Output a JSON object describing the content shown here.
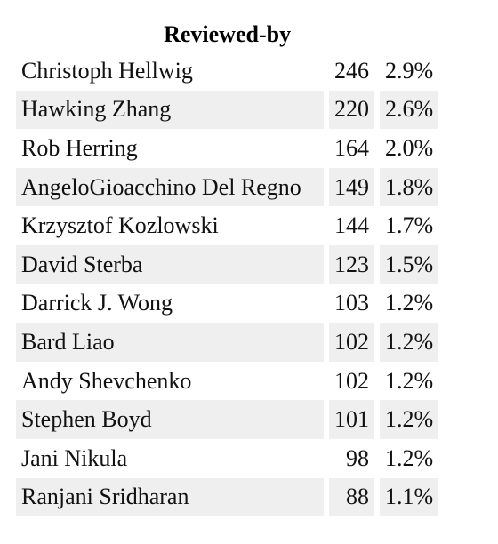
{
  "table": {
    "title": "Reviewed-by",
    "rows": [
      {
        "name": "Christoph Hellwig",
        "count": "246",
        "percent": "2.9%"
      },
      {
        "name": "Hawking Zhang",
        "count": "220",
        "percent": "2.6%"
      },
      {
        "name": "Rob Herring",
        "count": "164",
        "percent": "2.0%"
      },
      {
        "name": "AngeloGioacchino Del Regno",
        "count": "149",
        "percent": "1.8%"
      },
      {
        "name": "Krzysztof Kozlowski",
        "count": "144",
        "percent": "1.7%"
      },
      {
        "name": "David Sterba",
        "count": "123",
        "percent": "1.5%"
      },
      {
        "name": "Darrick J. Wong",
        "count": "103",
        "percent": "1.2%"
      },
      {
        "name": "Bard Liao",
        "count": "102",
        "percent": "1.2%"
      },
      {
        "name": "Andy Shevchenko",
        "count": "102",
        "percent": "1.2%"
      },
      {
        "name": "Stephen Boyd",
        "count": "101",
        "percent": "1.2%"
      },
      {
        "name": "Jani Nikula",
        "count": "98",
        "percent": "1.2%"
      },
      {
        "name": "Ranjani Sridharan",
        "count": "88",
        "percent": "1.1%"
      }
    ]
  }
}
